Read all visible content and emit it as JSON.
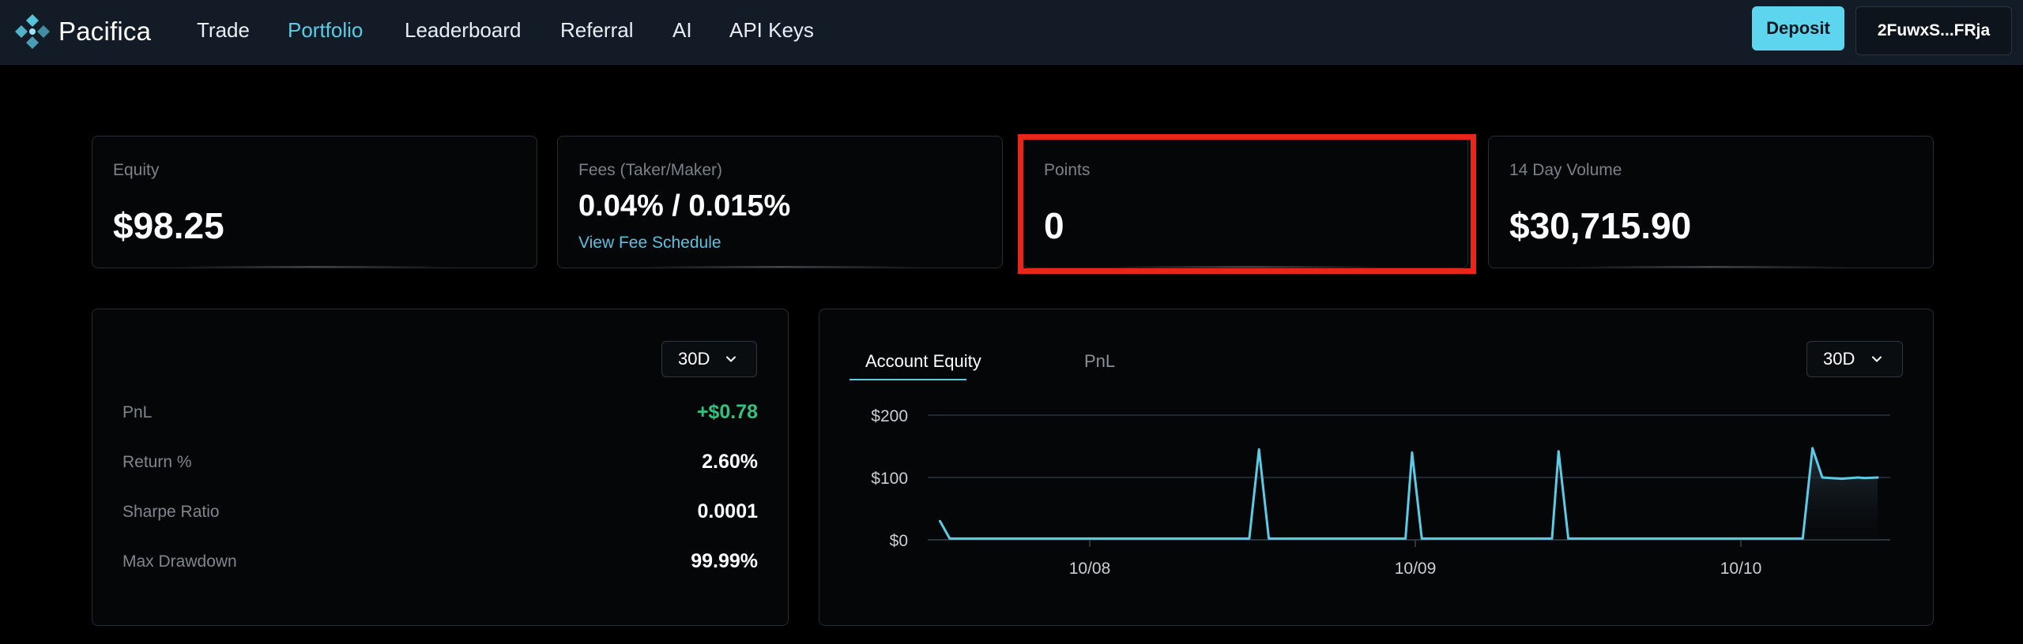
{
  "app": {
    "name": "Pacifica",
    "logo_icon": "pacifica-logo-icon"
  },
  "nav": {
    "items": [
      {
        "label": "Trade",
        "active": false
      },
      {
        "label": "Portfolio",
        "active": true
      },
      {
        "label": "Leaderboard",
        "active": false
      },
      {
        "label": "Referral",
        "active": false
      },
      {
        "label": "AI",
        "active": false
      },
      {
        "label": "API Keys",
        "active": false
      }
    ],
    "deposit_label": "Deposit",
    "wallet_label": "2FuwxS...FRja"
  },
  "stats": {
    "equity": {
      "label": "Equity",
      "value": "$98.25"
    },
    "fees": {
      "label": "Fees (Taker/Maker)",
      "value": "0.04% / 0.015%",
      "link": "View Fee Schedule"
    },
    "points": {
      "label": "Points",
      "value": "0"
    },
    "volume": {
      "label": "14 Day Volume",
      "value": "$30,715.90"
    }
  },
  "performance": {
    "range": "30D",
    "metrics": [
      {
        "label": "PnL",
        "value": "+$0.78",
        "positive": true
      },
      {
        "label": "Return %",
        "value": "2.60%",
        "positive": false
      },
      {
        "label": "Sharpe Ratio",
        "value": "0.0001",
        "positive": false
      },
      {
        "label": "Max Drawdown",
        "value": "99.99%",
        "positive": false
      }
    ]
  },
  "equity_chart": {
    "tabs": [
      {
        "label": "Account Equity",
        "active": true
      },
      {
        "label": "PnL",
        "active": false
      }
    ],
    "range": "30D"
  },
  "colors": {
    "accent": "#5ccbe5",
    "positive": "#2fc280",
    "highlight": "#e8261a",
    "line": "#5ccbe5"
  },
  "chart_data": {
    "type": "area",
    "title": "",
    "xlabel": "",
    "ylabel": "",
    "ylim": [
      0,
      200
    ],
    "yticks": [
      "$200",
      "$100",
      "$0"
    ],
    "xticks": [
      "10/08",
      "10/09",
      "10/10"
    ],
    "x_unit": "days from 10/08 tick",
    "grid": true,
    "legend": "none",
    "series": [
      {
        "points": [
          [
            -0.46,
            30
          ],
          [
            -0.43,
            2
          ],
          [
            0.49,
            2
          ],
          [
            0.52,
            145
          ],
          [
            0.55,
            2
          ],
          [
            0.97,
            2
          ],
          [
            0.99,
            140
          ],
          [
            1.02,
            2
          ],
          [
            1.42,
            2
          ],
          [
            1.44,
            142
          ],
          [
            1.47,
            2
          ],
          [
            2.19,
            2
          ],
          [
            2.22,
            147
          ],
          [
            2.25,
            100
          ],
          [
            2.31,
            98
          ],
          [
            2.36,
            100
          ],
          [
            2.38,
            99
          ],
          [
            2.42,
            100
          ]
        ]
      }
    ]
  }
}
